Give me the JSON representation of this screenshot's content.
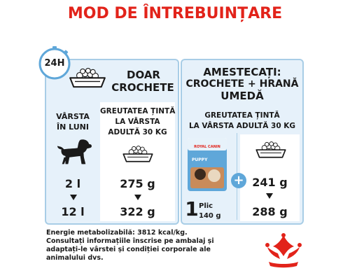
{
  "title": "MOD DE ÎNTREBUINȚARE",
  "clock_label": "24H",
  "left_panel": {
    "heading_line1": "DOAR",
    "heading_line2": "CROCHETE",
    "age_label_line1": "VÂRSTA",
    "age_label_line2": "ÎN LUNI",
    "target_weight_line1": "GREUTATEA ȚINTĂ",
    "target_weight_line2": "LA VÂRSTA",
    "target_weight_line3": "ADULTĂ 30 KG",
    "rows": [
      {
        "age": "2 l",
        "amount": "275 g"
      },
      {
        "age": "12 l",
        "amount": "322 g"
      }
    ]
  },
  "right_panel": {
    "heading_line1": "AMESTECAȚI:",
    "heading_line2": "CROCHETE + HRANĂ",
    "heading_line3": "UMEDĂ",
    "target_weight_line1": "GREUTATEA ȚINTĂ",
    "target_weight_line2": "LA VÂRSTA ADULTĂ 30 KG",
    "pouch_count": "1",
    "pouch_unit": "Plic",
    "pouch_weight": "140 g",
    "pouch_brand": "ROYAL CANIN",
    "pouch_label": "PUPPY",
    "plus_sign": "+",
    "rows": [
      {
        "amount": "241 g"
      },
      {
        "amount": "288 g"
      }
    ]
  },
  "footer": {
    "line1": "Energie metabolizabilă: 3812 kcal/kg.",
    "line2": "Consultați informațiile înscrise pe ambalaj și",
    "line3": "adaptați-le vârstei și condiției corporale ale",
    "line4": "animalului dvs."
  },
  "colors": {
    "title_red": "#e2231a",
    "panel_blue": "#e6f1fa",
    "border_blue": "#a8cde6",
    "accent_blue": "#5fa7d9",
    "text_dark": "#1a1a1a",
    "royal_canin_red": "#e2231a"
  },
  "icons": [
    "clock-icon",
    "kibble-bowl-icon",
    "down-arrow-icon",
    "puppy-silhouette-icon",
    "wet-food-pouch-icon",
    "plus-icon",
    "royal-canin-logo"
  ]
}
